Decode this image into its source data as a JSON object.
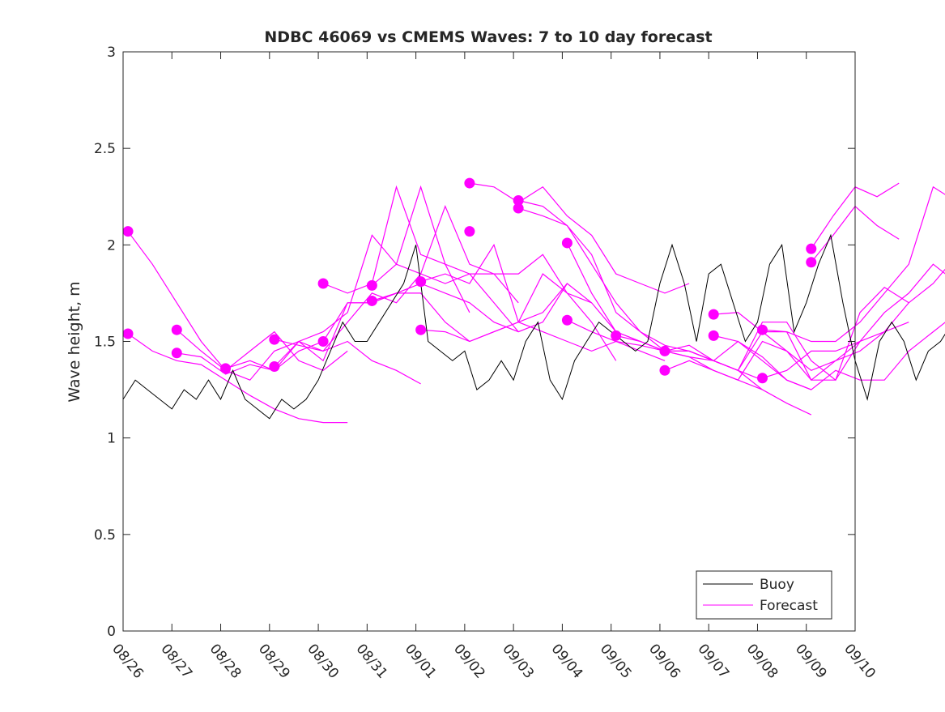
{
  "chart_data": {
    "type": "line",
    "title": "NDBC 46069 vs CMEMS Waves: 7 to 10 day forecast",
    "xlabel": "",
    "ylabel": "Wave height, m",
    "ylim": [
      0,
      3
    ],
    "yticks": [
      "0",
      "0.5",
      "1",
      "1.5",
      "2",
      "2.5",
      "3"
    ],
    "xticks": [
      "08/26",
      "08/27",
      "08/28",
      "08/29",
      "08/30",
      "08/31",
      "09/01",
      "09/02",
      "09/03",
      "09/04",
      "09/05",
      "09/06",
      "09/07",
      "09/08",
      "09/09",
      "09/10"
    ],
    "xlim_days": [
      0,
      15
    ],
    "legend": {
      "position": "bottom-right",
      "entries": [
        "Buoy",
        "Forecast"
      ]
    },
    "colors": {
      "buoy": "#000000",
      "forecast": "#ff00ff"
    },
    "buoy": {
      "start_day": 0,
      "step_days": 0.25,
      "values": [
        1.2,
        1.3,
        1.25,
        1.2,
        1.15,
        1.25,
        1.2,
        1.3,
        1.2,
        1.35,
        1.2,
        1.15,
        1.1,
        1.2,
        1.15,
        1.2,
        1.3,
        1.45,
        1.6,
        1.5,
        1.5,
        1.6,
        1.7,
        1.8,
        2.0,
        1.5,
        1.45,
        1.4,
        1.45,
        1.25,
        1.3,
        1.4,
        1.3,
        1.5,
        1.6,
        1.3,
        1.2,
        1.4,
        1.5,
        1.6,
        1.55,
        1.5,
        1.45,
        1.5,
        1.8,
        2.0,
        1.8,
        1.5,
        1.85,
        1.9,
        1.7,
        1.5,
        1.6,
        1.9,
        2.0,
        1.55,
        1.7,
        1.9,
        2.05,
        1.7,
        1.4,
        1.2,
        1.5,
        1.6,
        1.5,
        1.3,
        1.45,
        1.5,
        1.6,
        1.2,
        1.15,
        1.05,
        1.6
      ]
    },
    "forecasts": [
      {
        "start_day": 0.1,
        "step_days": 0.5,
        "values": [
          2.07,
          1.9,
          1.7,
          1.5,
          1.35,
          1.45,
          1.55,
          1.4,
          1.35,
          1.45
        ]
      },
      {
        "start_day": 0.1,
        "step_days": 0.5,
        "values": [
          1.54,
          1.45,
          1.4,
          1.38,
          1.3,
          1.22,
          1.15,
          1.1,
          1.08,
          1.08
        ]
      },
      {
        "start_day": 1.1,
        "step_days": 0.5,
        "values": [
          1.56,
          1.45,
          1.35,
          1.3,
          1.45,
          1.5,
          1.45,
          1.5,
          1.4,
          1.35,
          1.28
        ]
      },
      {
        "start_day": 1.1,
        "step_days": 0.5,
        "values": [
          1.44,
          1.42,
          1.33,
          1.38,
          1.35,
          1.45,
          1.5,
          1.7,
          1.7,
          1.75
        ]
      },
      {
        "start_day": 2.1,
        "step_days": 0.5,
        "values": [
          1.36,
          1.4,
          1.35,
          1.5,
          1.55,
          1.65,
          2.05,
          1.9,
          2.3,
          1.9,
          1.65
        ]
      },
      {
        "start_day": 3.1,
        "step_days": 0.5,
        "values": [
          1.51,
          1.48,
          1.45,
          1.6,
          1.75,
          1.7,
          1.85,
          2.2,
          1.9,
          1.85,
          1.7
        ]
      },
      {
        "start_day": 3.1,
        "step_days": 0.5,
        "values": [
          1.37,
          1.5,
          1.4,
          1.7,
          1.7,
          1.75,
          1.8,
          1.75,
          1.7,
          1.6,
          1.55
        ]
      },
      {
        "start_day": 4.1,
        "step_days": 0.5,
        "values": [
          1.8,
          1.75,
          1.8,
          2.3,
          1.95,
          1.9,
          1.85,
          1.7,
          1.55,
          1.6,
          1.8
        ]
      },
      {
        "start_day": 5.1,
        "step_days": 0.5,
        "values": [
          1.79,
          1.9,
          1.85,
          1.8,
          1.85,
          1.85,
          1.85,
          1.95,
          1.75,
          1.7
        ]
      },
      {
        "start_day": 5.1,
        "step_days": 0.5,
        "values": [
          1.71,
          1.75,
          1.75,
          1.6,
          1.5,
          1.55,
          1.6,
          1.85,
          1.75,
          1.6,
          1.4
        ]
      },
      {
        "start_day": 6.1,
        "step_days": 0.5,
        "values": [
          1.81,
          1.85,
          1.8,
          2.0,
          1.6,
          1.65,
          1.8,
          1.7,
          1.55,
          1.5,
          1.45
        ]
      },
      {
        "start_day": 6.1,
        "step_days": 0.5,
        "values": [
          1.56,
          1.55,
          1.5,
          1.55,
          1.6,
          1.55,
          1.5,
          1.45,
          1.5,
          1.45,
          1.4
        ]
      },
      {
        "start_day": 7.1,
        "step_days": 0.5,
        "values": [
          2.32,
          2.3,
          2.22,
          2.3,
          2.15,
          2.05,
          1.85,
          1.8,
          1.75,
          1.8
        ]
      },
      {
        "start_day": 8.1,
        "step_days": 0.5,
        "values": [
          2.23,
          2.2,
          2.1,
          1.95,
          1.65,
          1.55,
          1.48,
          1.45,
          1.4,
          1.35,
          1.3
        ]
      },
      {
        "start_day": 8.1,
        "step_days": 0.5,
        "values": [
          2.19,
          2.15,
          2.1,
          1.9,
          1.7,
          1.55,
          1.45,
          1.42,
          1.4,
          1.35,
          1.25
        ]
      },
      {
        "start_day": 9.1,
        "step_days": 0.5,
        "values": [
          2.01,
          1.75,
          1.55,
          1.5,
          1.45,
          1.42,
          1.35,
          1.3,
          1.25,
          1.18,
          1.12
        ]
      },
      {
        "start_day": 9.1,
        "step_days": 0.5,
        "values": [
          1.61,
          1.55,
          1.5,
          1.48,
          1.45,
          1.45,
          1.4,
          1.5,
          1.42,
          1.3,
          1.25
        ]
      },
      {
        "start_day": 10.1,
        "step_days": 0.5,
        "values": [
          1.53,
          1.5,
          1.45,
          1.45,
          1.4,
          1.35,
          1.55,
          1.55,
          1.3,
          1.4,
          1.5
        ]
      },
      {
        "start_day": 11.1,
        "step_days": 0.5,
        "values": [
          1.45,
          1.48,
          1.4,
          1.35,
          1.6,
          1.6,
          1.4,
          1.3,
          1.65,
          1.78,
          1.7
        ]
      },
      {
        "start_day": 11.1,
        "step_days": 0.5,
        "values": [
          1.35,
          1.4,
          1.35,
          1.3,
          1.5,
          1.45,
          1.3,
          1.3,
          1.5,
          1.55,
          1.6
        ]
      },
      {
        "start_day": 12.1,
        "step_days": 0.5,
        "values": [
          1.64,
          1.65,
          1.55,
          1.45,
          1.35,
          1.4,
          1.45,
          1.55,
          1.7,
          1.8,
          1.95
        ]
      },
      {
        "start_day": 12.1,
        "step_days": 0.5,
        "values": [
          1.53,
          1.5,
          1.4,
          1.3,
          1.25,
          1.35,
          1.3,
          1.3,
          1.45,
          1.55,
          1.65
        ]
      },
      {
        "start_day": 13.1,
        "step_days": 0.5,
        "values": [
          1.56,
          1.55,
          1.5,
          1.5,
          1.6,
          1.75,
          1.9,
          2.3,
          2.22,
          2.3
        ]
      },
      {
        "start_day": 13.1,
        "step_days": 0.5,
        "values": [
          1.31,
          1.35,
          1.45,
          1.45,
          1.5,
          1.65,
          1.75,
          1.9,
          1.8,
          1.84
        ]
      },
      {
        "start_day": 14.1,
        "step_days": 0.45,
        "values": [
          1.98,
          2.15,
          2.3,
          2.25,
          2.32
        ]
      },
      {
        "start_day": 14.1,
        "step_days": 0.45,
        "values": [
          1.91,
          2.05,
          2.2,
          2.1,
          2.03
        ]
      }
    ],
    "markers": [
      [
        0.1,
        2.07
      ],
      [
        0.1,
        1.54
      ],
      [
        1.1,
        1.56
      ],
      [
        1.1,
        1.44
      ],
      [
        2.1,
        1.36
      ],
      [
        3.1,
        1.51
      ],
      [
        3.1,
        1.37
      ],
      [
        4.1,
        1.8
      ],
      [
        4.1,
        1.5
      ],
      [
        5.1,
        1.79
      ],
      [
        5.1,
        1.71
      ],
      [
        6.1,
        1.81
      ],
      [
        6.1,
        1.56
      ],
      [
        7.1,
        2.32
      ],
      [
        7.1,
        2.07
      ],
      [
        8.1,
        2.23
      ],
      [
        8.1,
        2.19
      ],
      [
        9.1,
        2.01
      ],
      [
        9.1,
        1.61
      ],
      [
        10.1,
        1.53
      ],
      [
        11.1,
        1.45
      ],
      [
        11.1,
        1.35
      ],
      [
        12.1,
        1.64
      ],
      [
        12.1,
        1.53
      ],
      [
        13.1,
        1.56
      ],
      [
        13.1,
        1.31
      ],
      [
        14.1,
        1.98
      ],
      [
        14.1,
        1.91
      ]
    ]
  }
}
